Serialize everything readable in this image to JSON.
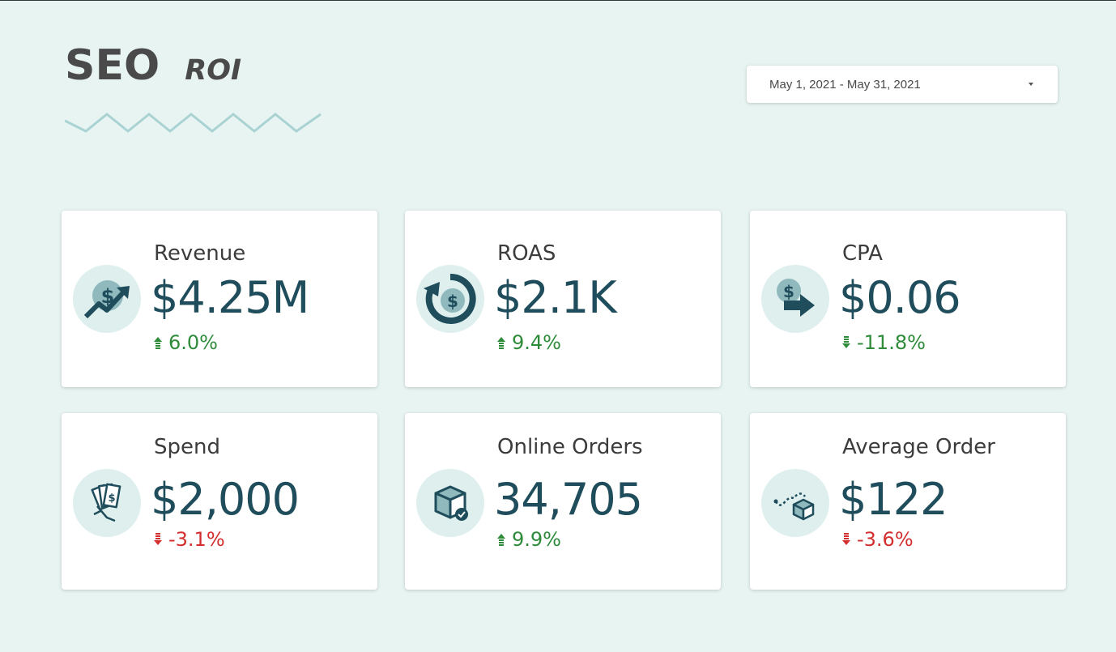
{
  "header": {
    "title": "SEO",
    "subtitle": "ROI"
  },
  "date_range": {
    "label": "May 1, 2021 - May 31, 2021"
  },
  "colors": {
    "background": "#e8f4f2",
    "value": "#1f4d5c",
    "positive": "#2e8b3a",
    "negative": "#d32f2f",
    "icon_dark": "#1f4d5c",
    "icon_light": "#deefee"
  },
  "cards": [
    {
      "label": "Revenue",
      "value": "$4.25M",
      "delta": "6.0%",
      "direction": "up",
      "sentiment": "positive",
      "icon": "revenue-growth-icon"
    },
    {
      "label": "ROAS",
      "value": "$2.1K",
      "delta": "9.4%",
      "direction": "up",
      "sentiment": "positive",
      "icon": "dollar-return-icon"
    },
    {
      "label": "CPA",
      "value": "$0.06",
      "delta": "-11.8%",
      "direction": "down",
      "sentiment": "positive",
      "icon": "dollar-arrow-icon"
    },
    {
      "label": "Spend",
      "value": "$2,000",
      "delta": "-3.1%",
      "direction": "down",
      "sentiment": "negative",
      "icon": "cash-hand-icon"
    },
    {
      "label": "Online Orders",
      "value": "34,705",
      "delta": "9.9%",
      "direction": "up",
      "sentiment": "positive",
      "icon": "package-check-icon"
    },
    {
      "label": "Average Order",
      "value": "$122",
      "delta": "-3.6%",
      "direction": "down",
      "sentiment": "negative",
      "icon": "package-route-icon"
    }
  ]
}
